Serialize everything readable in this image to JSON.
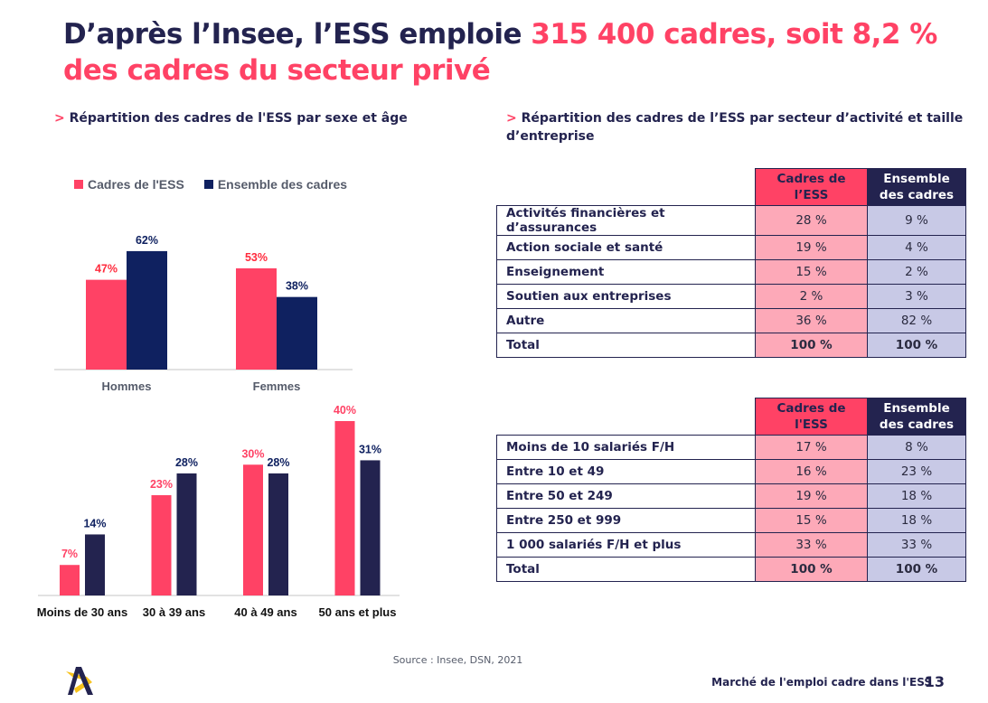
{
  "title": {
    "part1": "D’après l’Insee, l’ESS emploie ",
    "part2": "315 400 cadres, soit 8,2 % des cadres du secteur privé"
  },
  "left_subtitle": {
    "arrow": ">",
    "text": "Répartition des cadres de l'ESS par sexe et âge"
  },
  "right_subtitle": {
    "arrow": ">",
    "text": "Répartition des cadres de l’ESS par secteur d’activité et taille d’entreprise"
  },
  "colors": {
    "ess": "#ff4265",
    "all": "#0f2160",
    "all_age": "#23234f",
    "ess_label": "#ff2a3c",
    "all_label": "#0f2160",
    "axis": "#d9d9d9",
    "tick_label": "#555b6a"
  },
  "legend": [
    {
      "label": "Cadres de l'ESS",
      "color": "#ff4265"
    },
    {
      "label": "Ensemble des cadres",
      "color": "#0f2160"
    }
  ],
  "chart_data": [
    {
      "type": "bar",
      "title": "Répartition des cadres de l'ESS par sexe",
      "categories": [
        "Hommes",
        "Femmes"
      ],
      "series": [
        {
          "name": "Cadres de l'ESS",
          "values": [
            47,
            53
          ],
          "labels": [
            "47%",
            "53%"
          ]
        },
        {
          "name": "Ensemble des cadres",
          "values": [
            62,
            38
          ],
          "labels": [
            "62%",
            "38%"
          ]
        }
      ],
      "xlabel": "",
      "ylabel": "",
      "ylim": [
        0,
        70
      ],
      "grid": false,
      "legend": "top-left"
    },
    {
      "type": "bar",
      "title": "Répartition des cadres de l'ESS par âge",
      "categories": [
        "Moins de 30 ans",
        "30 à 39 ans",
        "40 à 49 ans",
        "50 ans et plus"
      ],
      "series": [
        {
          "name": "Cadres de l'ESS",
          "values": [
            7,
            23,
            30,
            40
          ],
          "labels": [
            "7%",
            "23%",
            "30%",
            "40%"
          ]
        },
        {
          "name": "Ensemble des cadres",
          "values": [
            14,
            28,
            28,
            31
          ],
          "labels": [
            "14%",
            "28%",
            "28%",
            "31%"
          ]
        }
      ],
      "xlabel": "",
      "ylabel": "",
      "ylim": [
        0,
        40
      ],
      "grid": false
    },
    {
      "type": "table",
      "title": "Répartition par secteur d’activité",
      "columns": [
        "",
        "Cadres de l’ESS",
        "Ensemble des cadres"
      ],
      "rows": [
        {
          "label": "Activités financières et d’assurances",
          "ess": "28 %",
          "all": "9 %"
        },
        {
          "label": "Action sociale et santé",
          "ess": "19 %",
          "all": "4 %"
        },
        {
          "label": "Enseignement",
          "ess": "15 %",
          "all": "2 %"
        },
        {
          "label": "Soutien aux entreprises",
          "ess": "2 %",
          "all": "3 %"
        },
        {
          "label": "Autre",
          "ess": "36 %",
          "all": "82 %"
        },
        {
          "label": "Total",
          "ess": "100 %",
          "all": "100 %"
        }
      ]
    },
    {
      "type": "table",
      "title": "Répartition par taille d’entreprise",
      "columns": [
        "",
        "Cadres de l'ESS",
        "Ensemble des cadres"
      ],
      "rows": [
        {
          "label": "Moins de 10 salariés F/H",
          "ess": "17  %",
          "all": "8 %"
        },
        {
          "label": "Entre 10 et 49",
          "ess": "16 %",
          "all": "23 %"
        },
        {
          "label": "Entre 50 et 249",
          "ess": "19 %",
          "all": "18 %"
        },
        {
          "label": "Entre 250 et 999",
          "ess": "15 %",
          "all": "18 %"
        },
        {
          "label": "1 000 salariés F/H et plus",
          "ess": "33 %",
          "all": "33 %"
        },
        {
          "label": "Total",
          "ess": "100 %",
          "all": "100 %"
        }
      ]
    }
  ],
  "table_headers": {
    "ess_line1": "Cadres de",
    "ess_line2_sector": "l’ESS",
    "ess_line2_size": "l'ESS",
    "all_line1": "Ensemble",
    "all_line2": "des cadres"
  },
  "source": "Source : Insee, DSN, 2021",
  "footer": {
    "text": "Marché de l'emploi cadre dans l'ESS",
    "page": "13"
  },
  "logo": {
    "icon": "apec-star-logo",
    "colors": [
      "#f7c21b",
      "#23234f"
    ]
  }
}
